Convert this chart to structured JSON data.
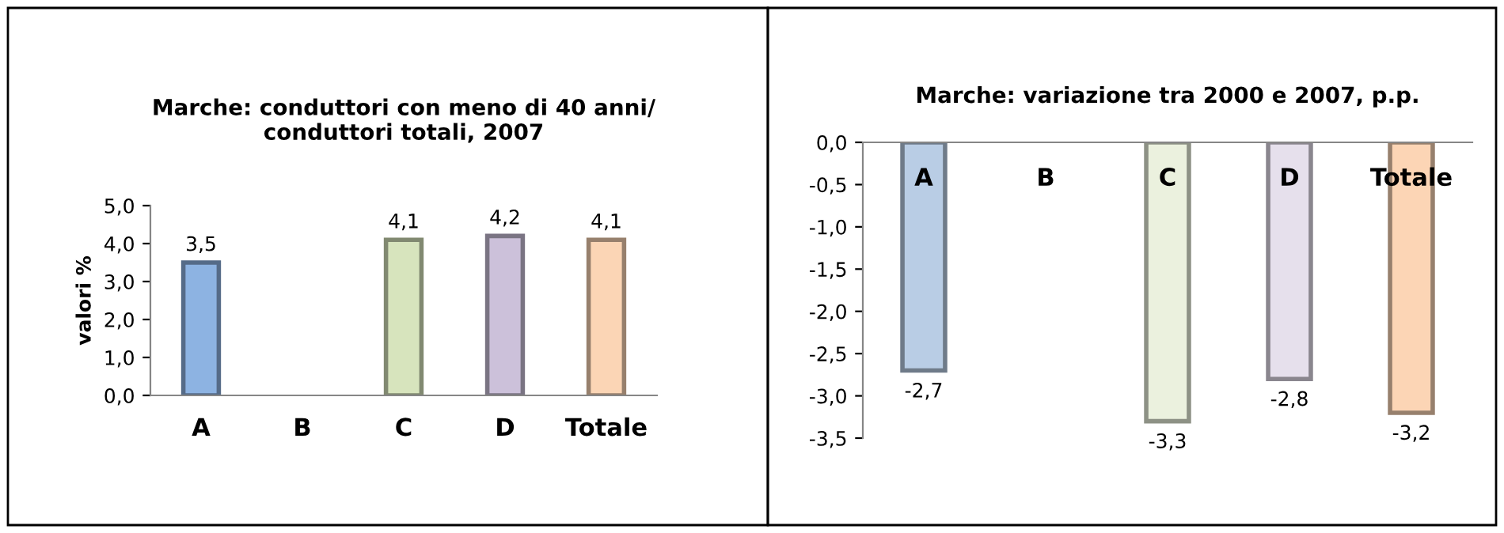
{
  "chart_data": [
    {
      "type": "bar",
      "title": "Marche: conduttori con meno di 40 anni/\nconduttori totali, 2007",
      "ylabel": "valori %",
      "categories": [
        "A",
        "B",
        "C",
        "D",
        "Totale"
      ],
      "values": [
        3.5,
        null,
        4.1,
        4.2,
        4.1
      ],
      "colors": [
        "#8db3e2",
        "#8db3e2",
        "#d7e4bd",
        "#ccc1da",
        "#fbd5b5"
      ],
      "value_labels": [
        "3,5",
        null,
        "4,1",
        "4,2",
        "4,1"
      ],
      "ylim": [
        0,
        5
      ],
      "yticks": [
        {
          "value": 0,
          "label": "0,0"
        },
        {
          "value": 1,
          "label": "1,0"
        },
        {
          "value": 2,
          "label": "2,0"
        },
        {
          "value": 3,
          "label": "3,0"
        },
        {
          "value": 4,
          "label": "4,0"
        },
        {
          "value": 5,
          "label": "5,0"
        }
      ],
      "grid": false,
      "legend": false
    },
    {
      "type": "bar",
      "title": "Marche: variazione tra 2000 e 2007, p.p.",
      "categories": [
        "A",
        "B",
        "C",
        "D",
        "Totale"
      ],
      "values": [
        -2.7,
        null,
        -3.3,
        -2.8,
        -3.2
      ],
      "colors": [
        "#b9cde5",
        "#b9cde5",
        "#ebf1de",
        "#e6e0ec",
        "#fcd5b5"
      ],
      "value_labels": [
        "-2,7",
        null,
        "-3,3",
        "-2,8",
        "-3,2"
      ],
      "ylim": [
        -3.5,
        0
      ],
      "yticks": [
        {
          "value": 0,
          "label": "0,0"
        },
        {
          "value": -0.5,
          "label": "-0,5"
        },
        {
          "value": -1,
          "label": "-1,0"
        },
        {
          "value": -1.5,
          "label": "-1,5"
        },
        {
          "value": -2,
          "label": "-2,0"
        },
        {
          "value": -2.5,
          "label": "-2,5"
        },
        {
          "value": -3,
          "label": "-3,0"
        },
        {
          "value": -3.5,
          "label": "-3,5"
        }
      ],
      "grid": false,
      "legend": false
    }
  ]
}
